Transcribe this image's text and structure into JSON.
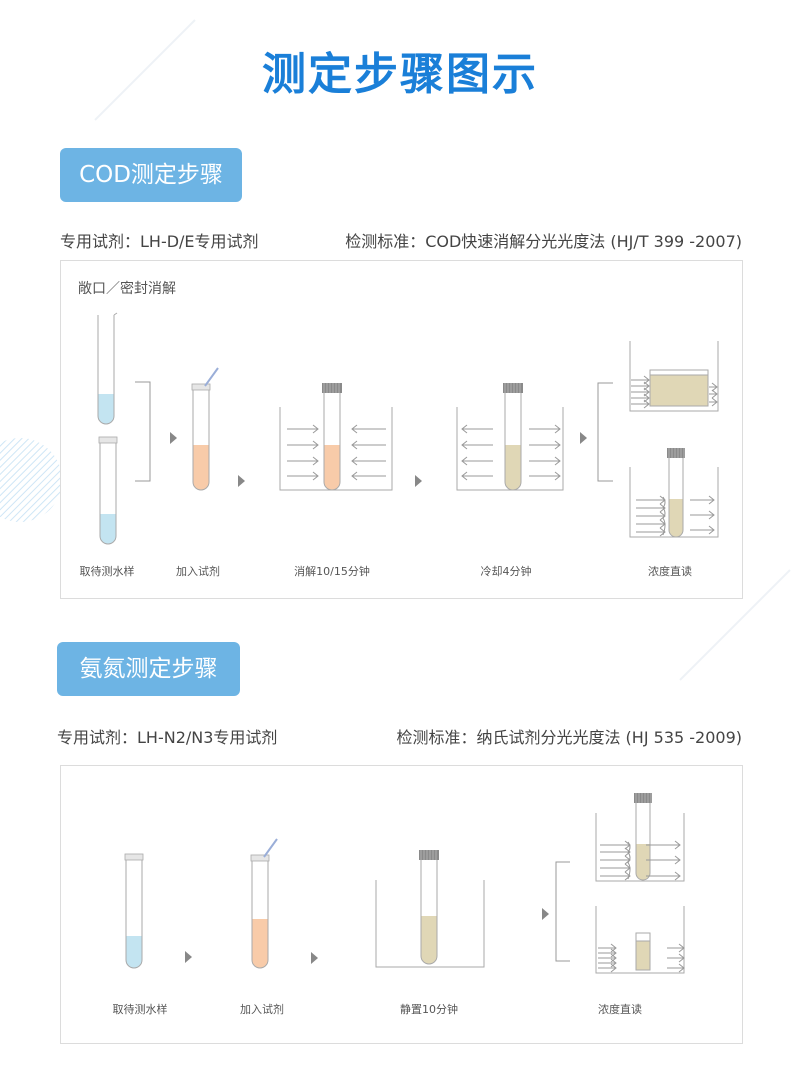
{
  "title": "测定步骤图示",
  "colors": {
    "accent": "#1a7fd8",
    "badge": "#6db4e4",
    "water": "#c3e4f1",
    "reagent": "#f8cba9",
    "digested": "#e0d7b6"
  },
  "cod": {
    "badge": "COD测定步骤",
    "reagent": "专用试剂：LH-D/E专用试剂",
    "standard": "检测标准：COD快速消解分光光度法 (HJ/T 399 -2007)",
    "panel_title": "敞口／密封消解",
    "steps": [
      "取待测水样",
      "加入试剂",
      "消解10/15分钟",
      "冷却4分钟",
      "浓度直读"
    ]
  },
  "nh": {
    "badge": "氨氮测定步骤",
    "reagent": "专用试剂：LH-N2/N3专用试剂",
    "standard": "检测标准：纳氏试剂分光光度法 (HJ  535 -2009)",
    "steps": [
      "取待测水样",
      "加入试剂",
      "静置10分钟",
      "浓度直读"
    ]
  }
}
